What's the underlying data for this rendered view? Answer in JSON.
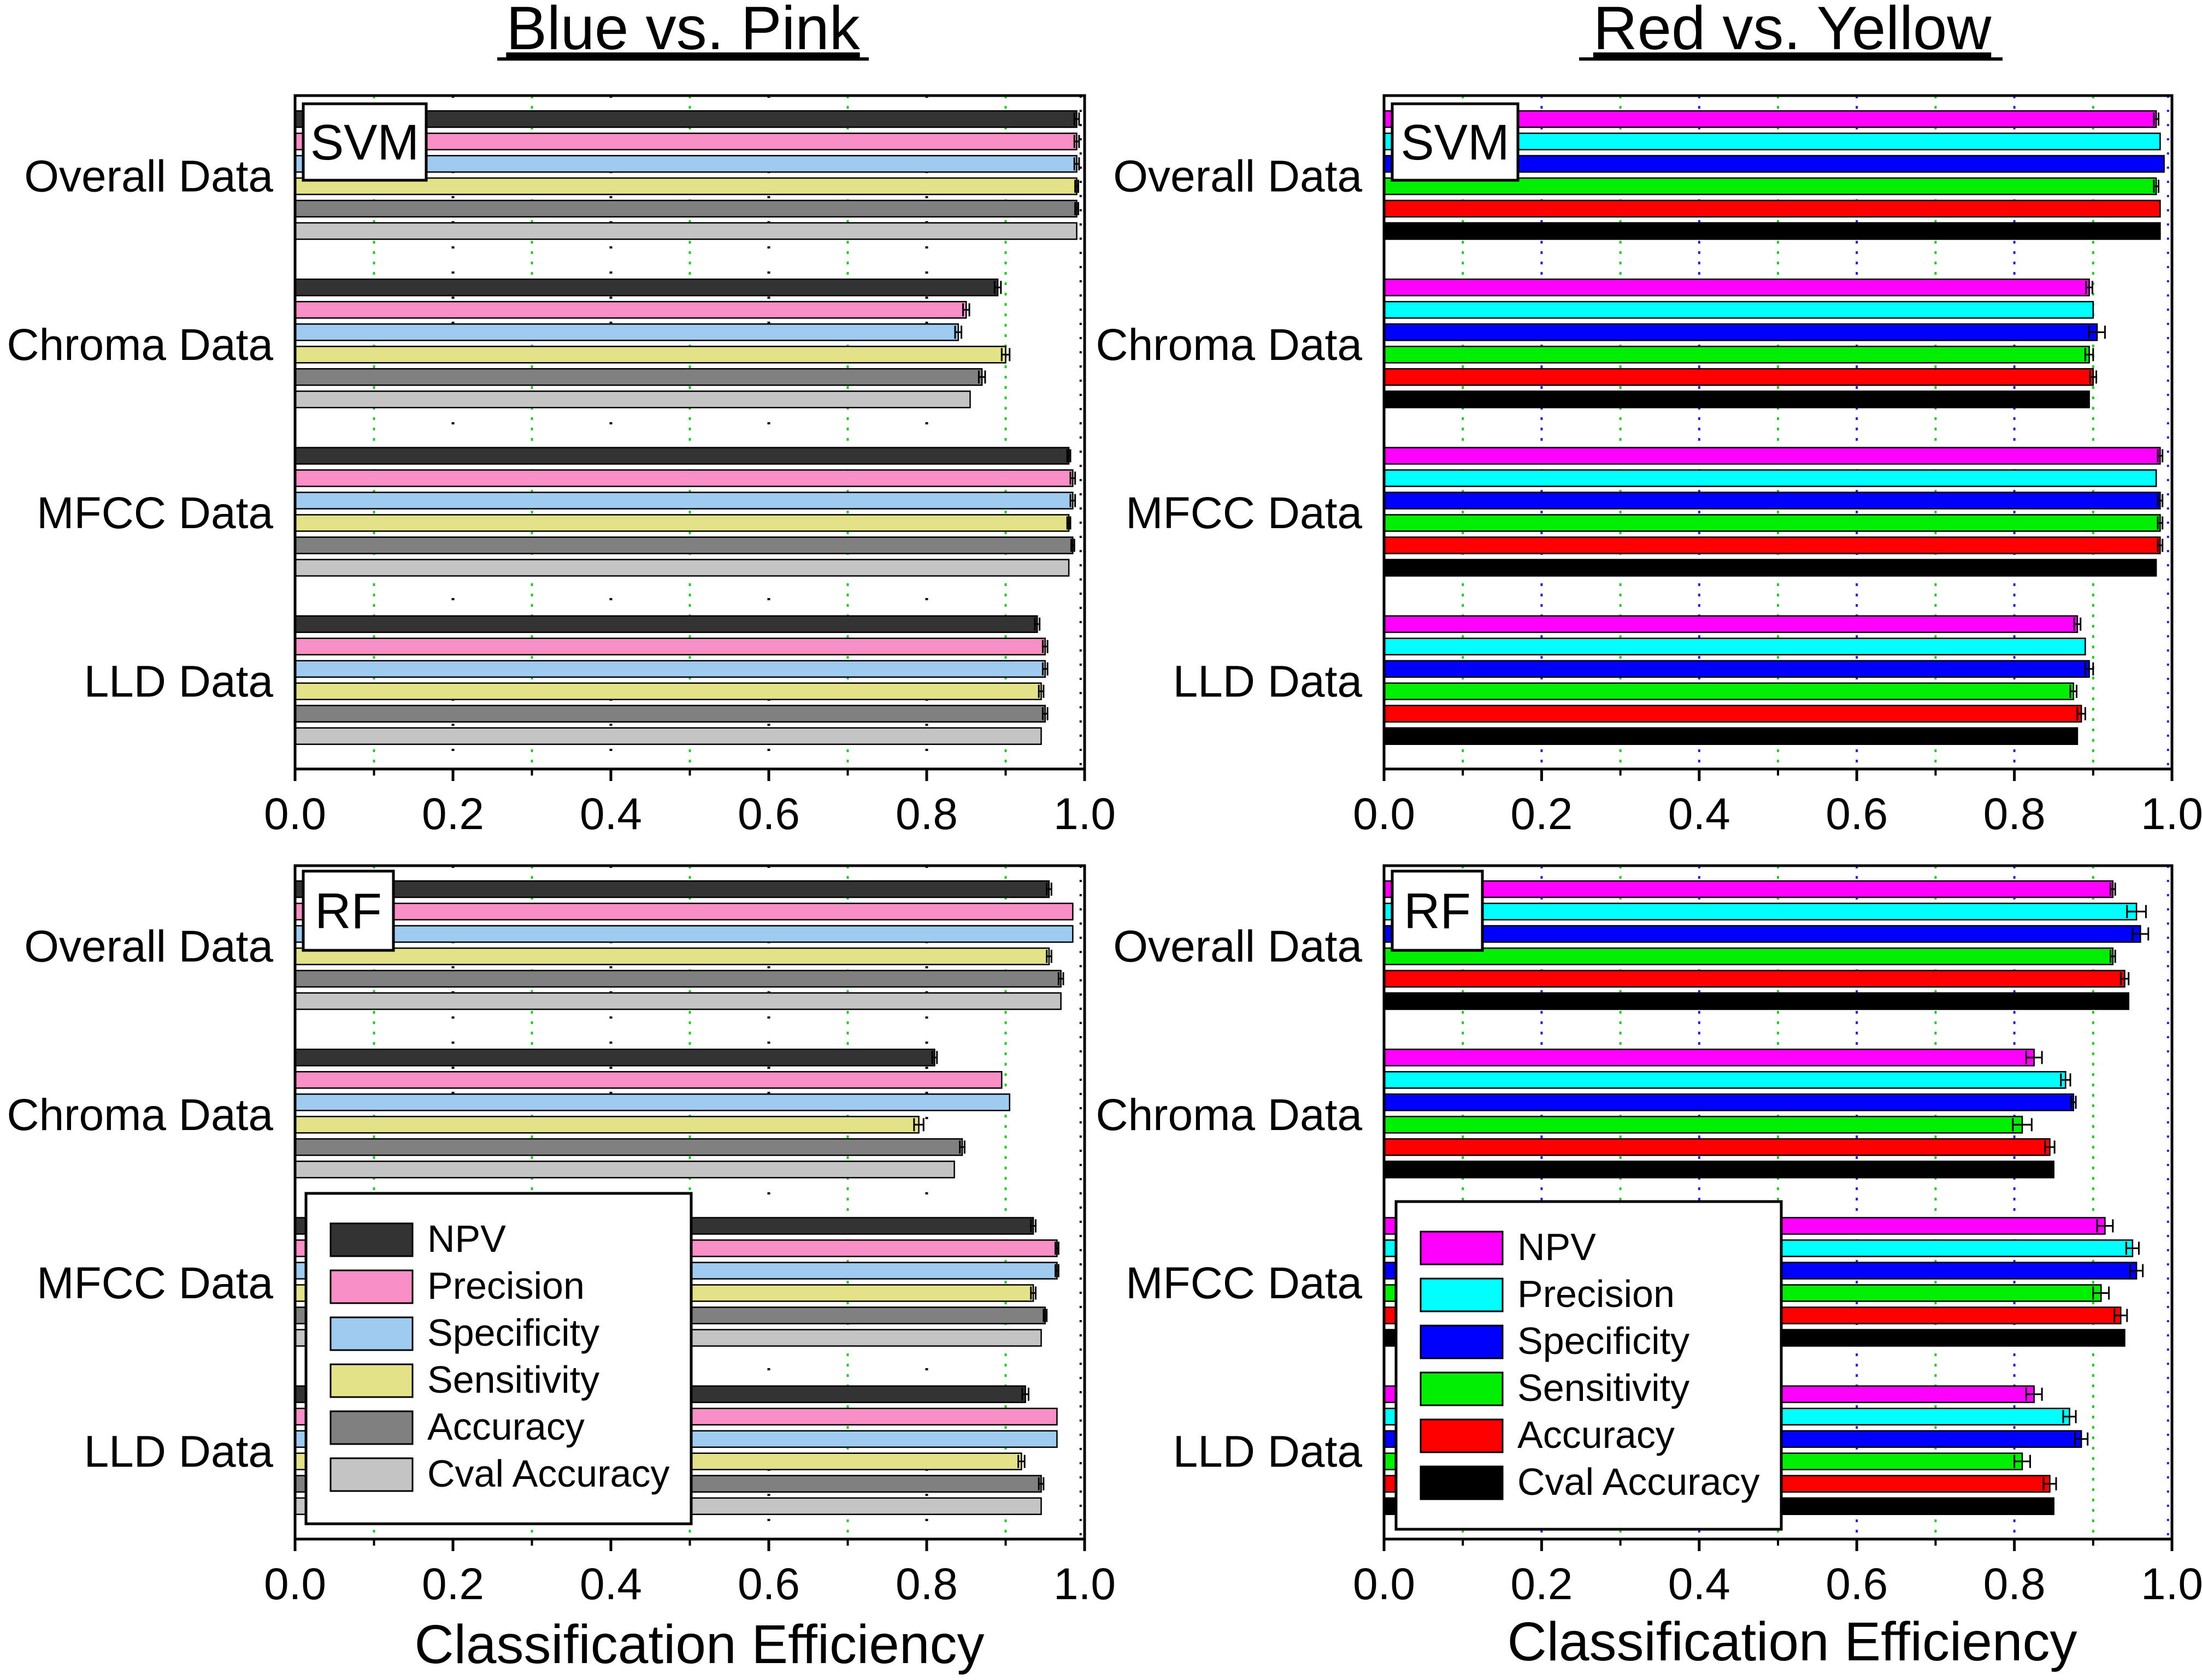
{
  "figure": {
    "column_titles": [
      "Blue vs. Pink",
      "Red vs. Yellow"
    ],
    "xlabel": "Classification Efficiency"
  },
  "colors": {
    "blue_pink": [
      "#333333",
      "#f78fc6",
      "#9ecbef",
      "#e3e287",
      "#808080",
      "#c4c4c4"
    ],
    "red_yellow": [
      "#ff00ff",
      "#00ffff",
      "#0000ff",
      "#00ee00",
      "#ff0000",
      "#000000"
    ],
    "green_grid": "#22cc22",
    "blue_grid": "#2222dd",
    "black_grid": "#000000"
  },
  "chart_data": [
    {
      "type": "bar",
      "orientation": "horizontal",
      "panel": "SVM",
      "column": "Blue vs. Pink",
      "categories": [
        "Overall Data",
        "Chroma Data",
        "MFCC Data",
        "LLD Data"
      ],
      "xlim": [
        0.0,
        1.0
      ],
      "xticks": [
        "0.0",
        "0.2",
        "0.4",
        "0.6",
        "0.8",
        "1.0"
      ],
      "xlabel": "",
      "series": [
        {
          "name": "NPV",
          "values": [
            0.99,
            0.89,
            0.98,
            0.94
          ],
          "errors": [
            0.003,
            0.004,
            0.002,
            0.003
          ]
        },
        {
          "name": "Precision",
          "values": [
            0.99,
            0.85,
            0.985,
            0.95
          ],
          "errors": [
            0.003,
            0.004,
            0.003,
            0.003
          ]
        },
        {
          "name": "Specificity",
          "values": [
            0.99,
            0.84,
            0.985,
            0.95
          ],
          "errors": [
            0.003,
            0.004,
            0.003,
            0.003
          ]
        },
        {
          "name": "Sensitivity",
          "values": [
            0.99,
            0.9,
            0.98,
            0.945
          ],
          "errors": [
            0.002,
            0.005,
            0.002,
            0.003
          ]
        },
        {
          "name": "Accuracy",
          "values": [
            0.99,
            0.87,
            0.985,
            0.95
          ],
          "errors": [
            0.002,
            0.004,
            0.002,
            0.003
          ]
        },
        {
          "name": "Cval Accuracy",
          "values": [
            0.99,
            0.855,
            0.98,
            0.945
          ],
          "errors": [
            0.0,
            0.0,
            0.0,
            0.0
          ]
        }
      ]
    },
    {
      "type": "bar",
      "orientation": "horizontal",
      "panel": "SVM",
      "column": "Red vs. Yellow",
      "categories": [
        "Overall Data",
        "Chroma Data",
        "MFCC Data",
        "LLD Data"
      ],
      "xlim": [
        0.0,
        1.0
      ],
      "xticks": [
        "0.0",
        "0.2",
        "0.4",
        "0.6",
        "0.8",
        "1.0"
      ],
      "xlabel": "",
      "series": [
        {
          "name": "NPV",
          "values": [
            0.98,
            0.895,
            0.985,
            0.88
          ],
          "errors": [
            0.003,
            0.004,
            0.003,
            0.004
          ]
        },
        {
          "name": "Precision",
          "values": [
            0.985,
            0.9,
            0.98,
            0.89
          ],
          "errors": [
            0.0,
            0.0,
            0.0,
            0.0
          ]
        },
        {
          "name": "Specificity",
          "values": [
            0.99,
            0.905,
            0.985,
            0.895
          ],
          "errors": [
            0.0,
            0.01,
            0.003,
            0.005
          ]
        },
        {
          "name": "Sensitivity",
          "values": [
            0.98,
            0.895,
            0.985,
            0.875
          ],
          "errors": [
            0.003,
            0.005,
            0.003,
            0.004
          ]
        },
        {
          "name": "Accuracy",
          "values": [
            0.985,
            0.9,
            0.985,
            0.885
          ],
          "errors": [
            0.0,
            0.004,
            0.003,
            0.005
          ]
        },
        {
          "name": "Cval Accuracy",
          "values": [
            0.985,
            0.895,
            0.98,
            0.88
          ],
          "errors": [
            0.0,
            0.0,
            0.0,
            0.0
          ]
        }
      ]
    },
    {
      "type": "bar",
      "orientation": "horizontal",
      "panel": "RF",
      "column": "Blue vs. Pink",
      "categories": [
        "Overall Data",
        "Chroma Data",
        "MFCC Data",
        "LLD Data"
      ],
      "xlim": [
        0.0,
        1.0
      ],
      "xticks": [
        "0.0",
        "0.2",
        "0.4",
        "0.6",
        "0.8",
        "1.0"
      ],
      "xlabel": "Classification Efficiency",
      "series": [
        {
          "name": "NPV",
          "values": [
            0.955,
            0.81,
            0.935,
            0.925
          ],
          "errors": [
            0.003,
            0.003,
            0.003,
            0.004
          ]
        },
        {
          "name": "Precision",
          "values": [
            0.985,
            0.895,
            0.965,
            0.965
          ],
          "errors": [
            0.0,
            0.0,
            0.002,
            0.0
          ]
        },
        {
          "name": "Specificity",
          "values": [
            0.985,
            0.905,
            0.965,
            0.965
          ],
          "errors": [
            0.0,
            0.0,
            0.002,
            0.0
          ]
        },
        {
          "name": "Sensitivity",
          "values": [
            0.955,
            0.79,
            0.935,
            0.92
          ],
          "errors": [
            0.003,
            0.006,
            0.003,
            0.004
          ]
        },
        {
          "name": "Accuracy",
          "values": [
            0.97,
            0.845,
            0.95,
            0.945
          ],
          "errors": [
            0.003,
            0.003,
            0.002,
            0.003
          ]
        },
        {
          "name": "Cval Accuracy",
          "values": [
            0.97,
            0.835,
            0.945,
            0.945
          ],
          "errors": [
            0.0,
            0.0,
            0.0,
            0.0
          ]
        }
      ]
    },
    {
      "type": "bar",
      "orientation": "horizontal",
      "panel": "RF",
      "column": "Red vs. Yellow",
      "categories": [
        "Overall Data",
        "Chroma Data",
        "MFCC Data",
        "LLD Data"
      ],
      "xlim": [
        0.0,
        1.0
      ],
      "xticks": [
        "0.0",
        "0.2",
        "0.4",
        "0.6",
        "0.8",
        "1.0"
      ],
      "xlabel": "Classification Efficiency",
      "series": [
        {
          "name": "NPV",
          "values": [
            0.925,
            0.825,
            0.915,
            0.825
          ],
          "errors": [
            0.003,
            0.01,
            0.01,
            0.01
          ]
        },
        {
          "name": "Precision",
          "values": [
            0.955,
            0.865,
            0.95,
            0.87
          ],
          "errors": [
            0.012,
            0.006,
            0.008,
            0.008
          ]
        },
        {
          "name": "Specificity",
          "values": [
            0.96,
            0.875,
            0.955,
            0.885
          ],
          "errors": [
            0.01,
            0.003,
            0.008,
            0.008
          ]
        },
        {
          "name": "Sensitivity",
          "values": [
            0.925,
            0.81,
            0.91,
            0.81
          ],
          "errors": [
            0.003,
            0.012,
            0.01,
            0.01
          ]
        },
        {
          "name": "Accuracy",
          "values": [
            0.94,
            0.845,
            0.935,
            0.845
          ],
          "errors": [
            0.005,
            0.006,
            0.008,
            0.008
          ]
        },
        {
          "name": "Cval Accuracy",
          "values": [
            0.945,
            0.85,
            0.94,
            0.85
          ],
          "errors": [
            0.0,
            0.0,
            0.0,
            0.0
          ]
        }
      ]
    }
  ]
}
